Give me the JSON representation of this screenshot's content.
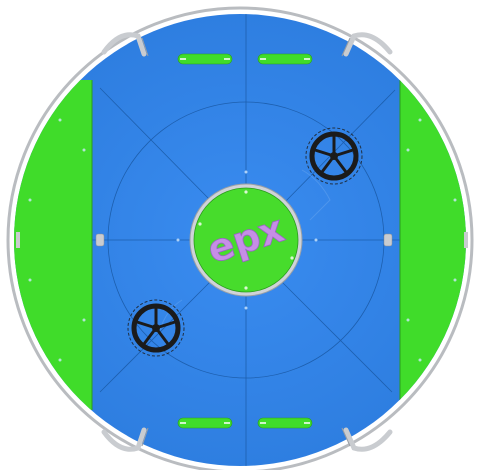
{
  "scene": {
    "kind": "playground-spinner-top-view",
    "logo": {
      "text": "epx",
      "colors": [
        "#c08ae0",
        "#d6a6f0",
        "#b98ee6"
      ]
    },
    "colors": {
      "deck_blue": "#2e7fe0",
      "deck_blue_dark": "#1f6cc8",
      "side_green": "#3fdd2a",
      "handle_green": "#3fdd2a",
      "center_green": "#46dc2b",
      "rail_grey": "#c9ccd0",
      "wheel": "#1b1b1b"
    },
    "icons": [
      "steering-wheel-icon",
      "steering-wheel-icon",
      "bolt-icon"
    ]
  }
}
